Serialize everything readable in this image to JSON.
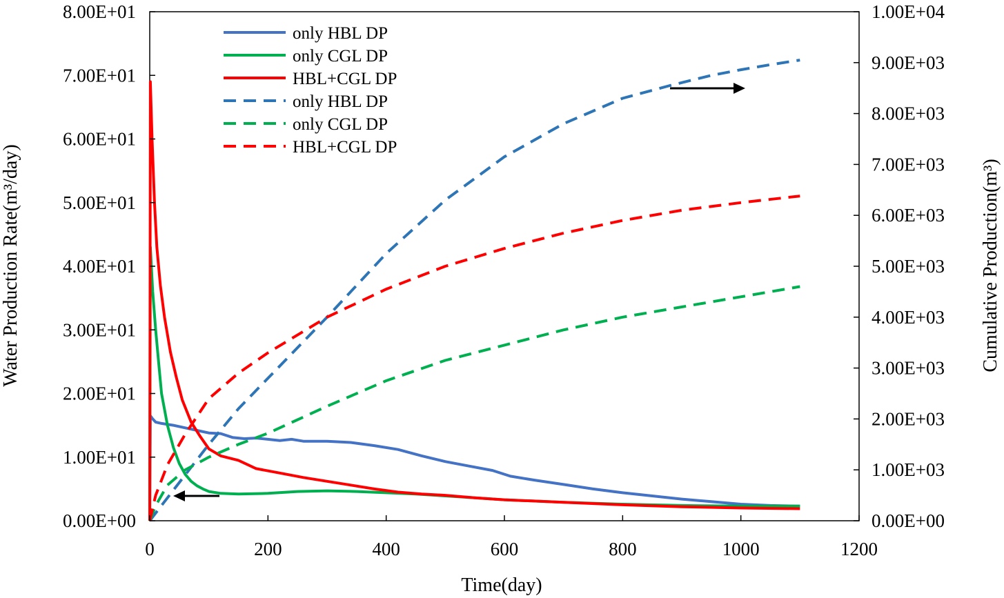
{
  "chart_data": {
    "type": "line",
    "xlabel": "Time(day)",
    "ylabel_left": "Water Production Rate(m³/day)",
    "ylabel_right": "Cumulative Production(m³)",
    "xlim": [
      0,
      1200
    ],
    "ylim_left": [
      0,
      80
    ],
    "ylim_right": [
      0,
      10000
    ],
    "x_ticks": [
      "0",
      "200",
      "400",
      "600",
      "800",
      "1000",
      "1200"
    ],
    "y_left_ticks": [
      "0.00E+00",
      "1.00E+01",
      "2.00E+01",
      "3.00E+01",
      "4.00E+01",
      "5.00E+01",
      "6.00E+01",
      "7.00E+01",
      "8.00E+01"
    ],
    "y_right_ticks": [
      "0.00E+00",
      "1.00E+03",
      "2.00E+03",
      "3.00E+03",
      "4.00E+03",
      "5.00E+03",
      "6.00E+03",
      "7.00E+03",
      "8.00E+03",
      "9.00E+03",
      "1.00E+04"
    ],
    "legend_position": "top-left",
    "series": [
      {
        "name": "only HBL DP",
        "axis": "left",
        "style": "solid",
        "color": "#4472c4",
        "points": [
          [
            0,
            0
          ],
          [
            1,
            16.5
          ],
          [
            5,
            16
          ],
          [
            10,
            15.5
          ],
          [
            20,
            15.3
          ],
          [
            40,
            15
          ],
          [
            60,
            14.6
          ],
          [
            80,
            14.2
          ],
          [
            100,
            13.8
          ],
          [
            120,
            13.7
          ],
          [
            140,
            13.1
          ],
          [
            160,
            12.9
          ],
          [
            180,
            13
          ],
          [
            200,
            12.8
          ],
          [
            220,
            12.6
          ],
          [
            240,
            12.8
          ],
          [
            260,
            12.5
          ],
          [
            300,
            12.5
          ],
          [
            340,
            12.3
          ],
          [
            380,
            11.8
          ],
          [
            420,
            11.2
          ],
          [
            460,
            10.2
          ],
          [
            500,
            9.3
          ],
          [
            540,
            8.6
          ],
          [
            580,
            7.9
          ],
          [
            610,
            7
          ],
          [
            650,
            6.4
          ],
          [
            700,
            5.7
          ],
          [
            750,
            5
          ],
          [
            800,
            4.4
          ],
          [
            850,
            3.9
          ],
          [
            900,
            3.4
          ],
          [
            950,
            3
          ],
          [
            1000,
            2.6
          ],
          [
            1050,
            2.4
          ],
          [
            1100,
            2.3
          ]
        ]
      },
      {
        "name": "only CGL DP",
        "axis": "left",
        "style": "solid",
        "color": "#00b050",
        "points": [
          [
            0,
            0
          ],
          [
            1,
            43
          ],
          [
            5,
            36
          ],
          [
            10,
            30
          ],
          [
            15,
            25
          ],
          [
            20,
            20
          ],
          [
            30,
            15
          ],
          [
            40,
            11.5
          ],
          [
            50,
            9
          ],
          [
            60,
            7.3
          ],
          [
            70,
            6.2
          ],
          [
            80,
            5.5
          ],
          [
            90,
            5
          ],
          [
            100,
            4.6
          ],
          [
            120,
            4.3
          ],
          [
            150,
            4.2
          ],
          [
            200,
            4.3
          ],
          [
            250,
            4.6
          ],
          [
            300,
            4.7
          ],
          [
            350,
            4.6
          ],
          [
            400,
            4.4
          ],
          [
            450,
            4.2
          ],
          [
            500,
            3.9
          ],
          [
            550,
            3.6
          ],
          [
            600,
            3.3
          ],
          [
            700,
            2.9
          ],
          [
            800,
            2.6
          ],
          [
            900,
            2.4
          ],
          [
            1000,
            2.3
          ],
          [
            1100,
            2.3
          ]
        ]
      },
      {
        "name": "HBL+CGL DP",
        "axis": "left",
        "style": "solid",
        "color": "#ff0000",
        "points": [
          [
            0,
            0
          ],
          [
            1,
            69
          ],
          [
            4,
            60
          ],
          [
            8,
            50
          ],
          [
            12,
            43
          ],
          [
            18,
            37
          ],
          [
            25,
            32
          ],
          [
            35,
            26.5
          ],
          [
            45,
            22.5
          ],
          [
            55,
            19
          ],
          [
            70,
            15.5
          ],
          [
            85,
            13.3
          ],
          [
            100,
            11.3
          ],
          [
            120,
            10.2
          ],
          [
            150,
            9.5
          ],
          [
            180,
            8.2
          ],
          [
            220,
            7.5
          ],
          [
            260,
            6.8
          ],
          [
            300,
            6.2
          ],
          [
            340,
            5.6
          ],
          [
            380,
            5
          ],
          [
            420,
            4.5
          ],
          [
            460,
            4.2
          ],
          [
            500,
            4
          ],
          [
            550,
            3.6
          ],
          [
            600,
            3.3
          ],
          [
            700,
            2.9
          ],
          [
            800,
            2.5
          ],
          [
            900,
            2.2
          ],
          [
            1000,
            2
          ],
          [
            1100,
            1.9
          ]
        ]
      },
      {
        "name": "only HBL DP",
        "axis": "right",
        "style": "dashed",
        "color": "#2e75b6",
        "points": [
          [
            0,
            0
          ],
          [
            50,
            750
          ],
          [
            100,
            1500
          ],
          [
            150,
            2200
          ],
          [
            200,
            2800
          ],
          [
            300,
            4000
          ],
          [
            400,
            5250
          ],
          [
            500,
            6300
          ],
          [
            600,
            7150
          ],
          [
            700,
            7800
          ],
          [
            800,
            8300
          ],
          [
            880,
            8550
          ],
          [
            950,
            8750
          ],
          [
            1000,
            8860
          ],
          [
            1050,
            8960
          ],
          [
            1100,
            9050
          ]
        ]
      },
      {
        "name": "only CGL DP",
        "axis": "right",
        "style": "dashed",
        "color": "#00b050",
        "points": [
          [
            0,
            0
          ],
          [
            10,
            300
          ],
          [
            30,
            700
          ],
          [
            60,
            1000
          ],
          [
            100,
            1250
          ],
          [
            150,
            1500
          ],
          [
            200,
            1720
          ],
          [
            300,
            2250
          ],
          [
            400,
            2750
          ],
          [
            500,
            3150
          ],
          [
            600,
            3450
          ],
          [
            700,
            3750
          ],
          [
            800,
            4000
          ],
          [
            900,
            4200
          ],
          [
            1000,
            4400
          ],
          [
            1100,
            4600
          ]
        ]
      },
      {
        "name": "HBL+CGL DP",
        "axis": "right",
        "style": "dashed",
        "color": "#ff0000",
        "points": [
          [
            0,
            0
          ],
          [
            10,
            500
          ],
          [
            30,
            1100
          ],
          [
            60,
            1700
          ],
          [
            100,
            2400
          ],
          [
            150,
            2900
          ],
          [
            200,
            3300
          ],
          [
            300,
            4000
          ],
          [
            400,
            4550
          ],
          [
            500,
            5000
          ],
          [
            600,
            5350
          ],
          [
            700,
            5650
          ],
          [
            800,
            5900
          ],
          [
            900,
            6100
          ],
          [
            1000,
            6250
          ],
          [
            1100,
            6380
          ]
        ]
      }
    ]
  }
}
